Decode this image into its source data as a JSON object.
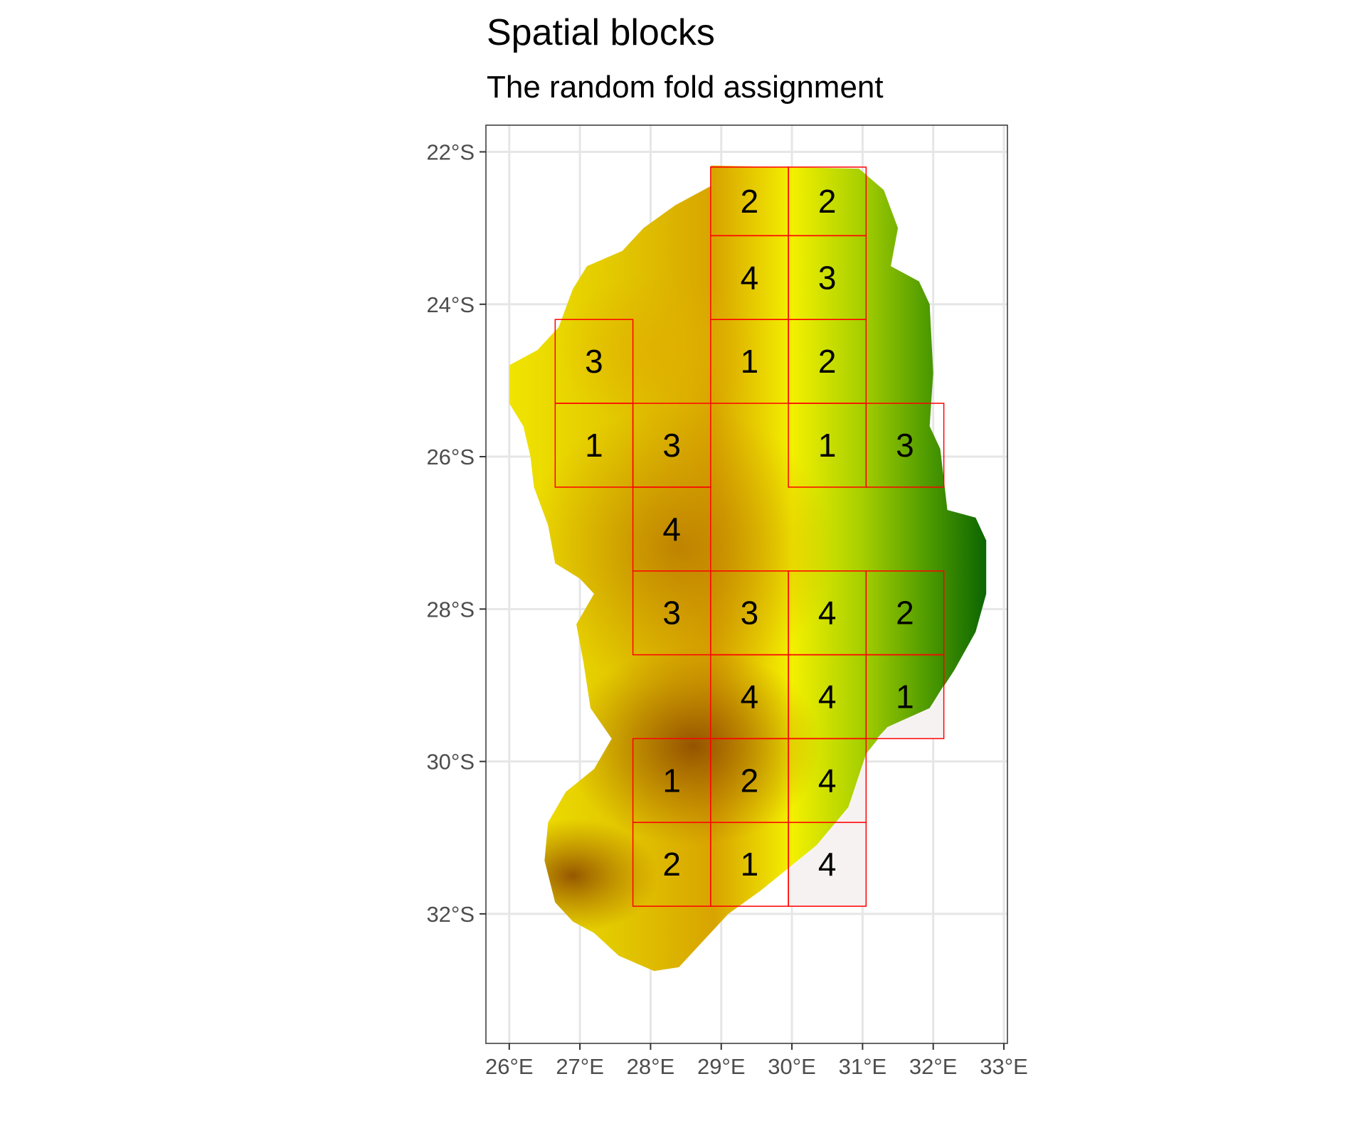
{
  "title": "Spatial blocks",
  "subtitle": "The random fold assignment",
  "x_ticks": [
    {
      "value": 26,
      "label": "26°E"
    },
    {
      "value": 27,
      "label": "27°E"
    },
    {
      "value": 28,
      "label": "28°E"
    },
    {
      "value": 29,
      "label": "29°E"
    },
    {
      "value": 30,
      "label": "30°E"
    },
    {
      "value": 31,
      "label": "31°E"
    },
    {
      "value": 32,
      "label": "32°E"
    },
    {
      "value": 33,
      "label": "33°E"
    }
  ],
  "y_ticks": [
    {
      "value": -22,
      "label": "22°S"
    },
    {
      "value": -24,
      "label": "24°S"
    },
    {
      "value": -26,
      "label": "26°S"
    },
    {
      "value": -28,
      "label": "28°S"
    },
    {
      "value": -30,
      "label": "30°S"
    },
    {
      "value": -32,
      "label": "32°S"
    }
  ],
  "extent": {
    "lon": [
      25.67,
      33.05
    ],
    "lat": [
      -33.7,
      -21.65
    ]
  },
  "colors": {
    "block_border": "#ff0000",
    "grid": "#e6e6e6",
    "panel_border": "#333333",
    "empty_cell": "#f7f2f2"
  },
  "blocks": [
    {
      "lon": [
        28.85,
        29.95
      ],
      "lat": [
        -23.1,
        -22.2
      ],
      "fold": "2"
    },
    {
      "lon": [
        29.95,
        31.05
      ],
      "lat": [
        -23.1,
        -22.2
      ],
      "fold": "2"
    },
    {
      "lon": [
        28.85,
        29.95
      ],
      "lat": [
        -24.2,
        -23.1
      ],
      "fold": "4"
    },
    {
      "lon": [
        29.95,
        31.05
      ],
      "lat": [
        -24.2,
        -23.1
      ],
      "fold": "3"
    },
    {
      "lon": [
        26.65,
        27.75
      ],
      "lat": [
        -25.3,
        -24.2
      ],
      "fold": "3"
    },
    {
      "lon": [
        28.85,
        29.95
      ],
      "lat": [
        -25.3,
        -24.2
      ],
      "fold": "1"
    },
    {
      "lon": [
        29.95,
        31.05
      ],
      "lat": [
        -25.3,
        -24.2
      ],
      "fold": "2"
    },
    {
      "lon": [
        26.65,
        27.75
      ],
      "lat": [
        -26.4,
        -25.3
      ],
      "fold": "1"
    },
    {
      "lon": [
        27.75,
        28.85
      ],
      "lat": [
        -26.4,
        -25.3
      ],
      "fold": "3"
    },
    {
      "lon": [
        29.95,
        31.05
      ],
      "lat": [
        -26.4,
        -25.3
      ],
      "fold": "1"
    },
    {
      "lon": [
        31.05,
        32.15
      ],
      "lat": [
        -26.4,
        -25.3
      ],
      "fold": "3"
    },
    {
      "lon": [
        27.75,
        28.85
      ],
      "lat": [
        -27.5,
        -26.4
      ],
      "fold": "4"
    },
    {
      "lon": [
        27.75,
        28.85
      ],
      "lat": [
        -28.6,
        -27.5
      ],
      "fold": "3"
    },
    {
      "lon": [
        28.85,
        29.95
      ],
      "lat": [
        -28.6,
        -27.5
      ],
      "fold": "3"
    },
    {
      "lon": [
        29.95,
        31.05
      ],
      "lat": [
        -28.6,
        -27.5
      ],
      "fold": "4"
    },
    {
      "lon": [
        31.05,
        32.15
      ],
      "lat": [
        -28.6,
        -27.5
      ],
      "fold": "2"
    },
    {
      "lon": [
        28.85,
        29.95
      ],
      "lat": [
        -29.7,
        -28.6
      ],
      "fold": "4"
    },
    {
      "lon": [
        29.95,
        31.05
      ],
      "lat": [
        -29.7,
        -28.6
      ],
      "fold": "4"
    },
    {
      "lon": [
        31.05,
        32.15
      ],
      "lat": [
        -29.7,
        -28.6
      ],
      "fold": "1"
    },
    {
      "lon": [
        27.75,
        28.85
      ],
      "lat": [
        -30.8,
        -29.7
      ],
      "fold": "1"
    },
    {
      "lon": [
        28.85,
        29.95
      ],
      "lat": [
        -30.8,
        -29.7
      ],
      "fold": "2"
    },
    {
      "lon": [
        29.95,
        31.05
      ],
      "lat": [
        -30.8,
        -29.7
      ],
      "fold": "4"
    },
    {
      "lon": [
        27.75,
        28.85
      ],
      "lat": [
        -31.9,
        -30.8
      ],
      "fold": "2"
    },
    {
      "lon": [
        28.85,
        29.95
      ],
      "lat": [
        -31.9,
        -30.8
      ],
      "fold": "1"
    },
    {
      "lon": [
        29.95,
        31.05
      ],
      "lat": [
        -31.9,
        -30.8
      ],
      "fold": "4"
    }
  ]
}
